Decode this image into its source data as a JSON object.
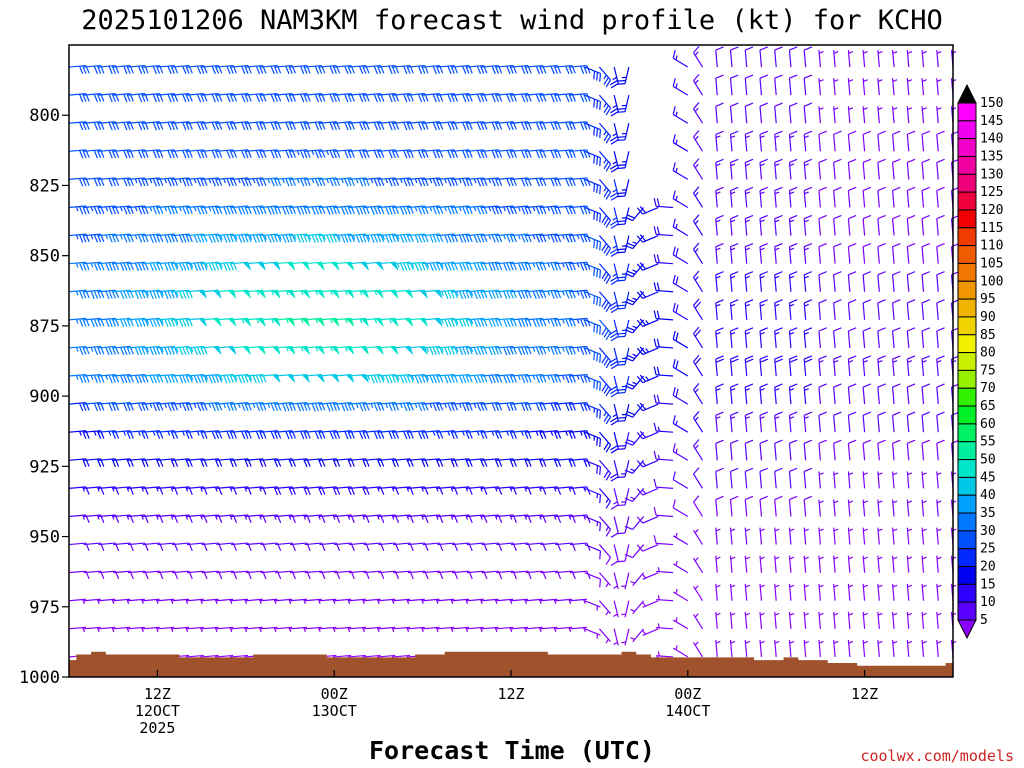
{
  "chart_data": {
    "type": "wind-barb time-height profile",
    "title": "2025101206 NAM3KM forecast wind profile (kt) for KCHO",
    "xlabel": "Forecast Time (UTC)",
    "ylabel": "",
    "yticks": [
      "800",
      "825",
      "850",
      "875",
      "900",
      "925",
      "950",
      "975",
      "1000"
    ],
    "ylim": [
      1000,
      775
    ],
    "y_scale": "pressure (hPa), inverted",
    "xticks": [
      {
        "hour": 6,
        "lines": [
          "12Z",
          "12OCT",
          "2025"
        ]
      },
      {
        "hour": 18,
        "lines": [
          "00Z",
          "13OCT"
        ]
      },
      {
        "hour": 30,
        "lines": [
          "12Z"
        ]
      },
      {
        "hour": 42,
        "lines": [
          "00Z",
          "14OCT"
        ]
      },
      {
        "hour": 54,
        "lines": [
          "12Z"
        ]
      }
    ],
    "xlim": [
      0,
      60
    ],
    "time_step_hours": 1,
    "levels_hpa": [
      780,
      790,
      800,
      810,
      820,
      830,
      840,
      850,
      860,
      870,
      880,
      890,
      900,
      910,
      920,
      930,
      940,
      950,
      960,
      970,
      980,
      990
    ],
    "surface_pressure": {
      "times": [
        0,
        1,
        2,
        3,
        4,
        5,
        6,
        7,
        8,
        9,
        10,
        11,
        12,
        13,
        14,
        15,
        16,
        17,
        18,
        19,
        20,
        21,
        22,
        23,
        24,
        25,
        26,
        27,
        28,
        29,
        30,
        31,
        32,
        33,
        34,
        35,
        36,
        37,
        38,
        39,
        40,
        41,
        42,
        43,
        44,
        45,
        46,
        47,
        48,
        49,
        50,
        51,
        52,
        53,
        54,
        55,
        56,
        57,
        58,
        59,
        60
      ],
      "values": [
        994,
        992,
        991,
        992,
        992,
        992,
        992,
        992,
        993,
        993,
        993,
        993,
        993,
        992,
        992,
        992,
        992,
        992,
        993,
        993,
        993,
        993,
        993,
        993,
        992,
        992,
        991,
        991,
        991,
        991,
        991,
        991,
        991,
        992,
        992,
        992,
        992,
        992,
        991,
        992,
        993,
        993,
        993,
        993,
        993,
        993,
        993,
        994,
        994,
        993,
        994,
        994,
        995,
        995,
        996,
        996,
        996,
        996,
        996,
        996,
        995
      ],
      "color": "#a0522d"
    },
    "wind_description": "Easterly to northeasterly flow of 30-50 kt aloft weakening to 10-20 kt northerly and northwesterly flow after 13OCT 18Z; data missing above 830 hPa between hours 39 and 41",
    "colorbar": {
      "levels": [
        5,
        10,
        15,
        20,
        25,
        30,
        35,
        40,
        45,
        50,
        55,
        60,
        65,
        70,
        75,
        80,
        85,
        90,
        95,
        100,
        105,
        110,
        115,
        120,
        125,
        130,
        135,
        140,
        145,
        150
      ],
      "colors": [
        "#7b00ff",
        "#5a00ff",
        "#2d00ff",
        "#0000f0",
        "#0028ff",
        "#0050ff",
        "#0078ff",
        "#00a0ff",
        "#00c8e6",
        "#00e6c8",
        "#00f0a0",
        "#00f064",
        "#00f028",
        "#32f000",
        "#96f000",
        "#c8f000",
        "#f0f000",
        "#f0d200",
        "#f0b400",
        "#f09600",
        "#f07800",
        "#f05a00",
        "#f03c00",
        "#f00000",
        "#f0003c",
        "#f00078",
        "#f000a0",
        "#f000c8",
        "#f000f0",
        "#ff00ff"
      ],
      "under_color": "#8a00ff",
      "over_color": "#000000"
    },
    "grid": false
  },
  "credit": "coolwx.com/models"
}
